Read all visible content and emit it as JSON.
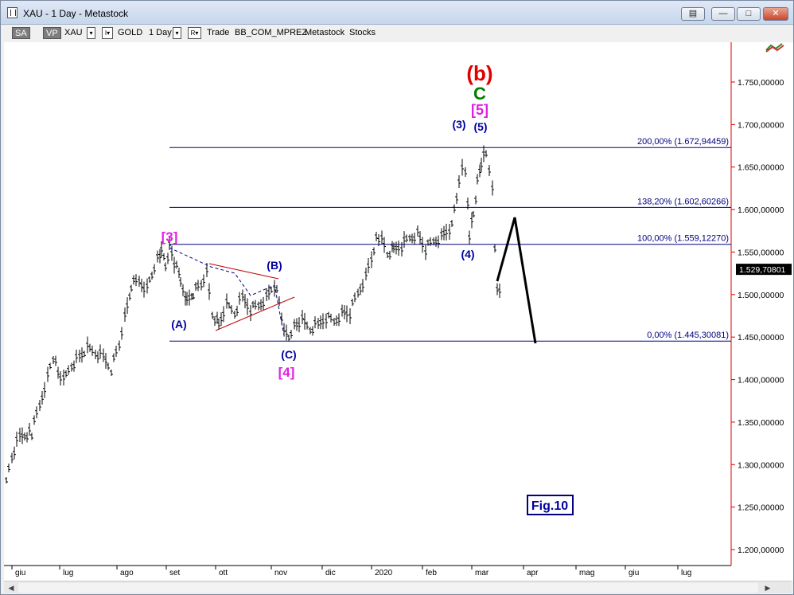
{
  "window": {
    "title": "XAU - 1 Day - Metastock",
    "buttons": {
      "restore_icon": "restore-window-icon",
      "minimize": "—",
      "maximize": "□",
      "close": "✕"
    }
  },
  "toolbar": {
    "sa": "SA",
    "vp": "VP",
    "symbol": "XAU",
    "arrow1": "▾",
    "i_box": "I▾",
    "name": "GOLD",
    "period": "1 Day",
    "arrow2": "▾",
    "r_box": "R▾",
    "trade": "Trade",
    "account": "BB_COM_MPREZ",
    "source": "Metastock",
    "type": "Stocks"
  },
  "chart_data": {
    "type": "candlestick",
    "x_labels": [
      "giu",
      "lug",
      "ago",
      "set",
      "ott",
      "nov",
      "dic",
      "2020",
      "feb",
      "mar",
      "apr",
      "mag",
      "giu",
      "lug"
    ],
    "y_ticks": [
      "1.750,00000",
      "1.700,00000",
      "1.650,00000",
      "1.600,00000",
      "1.550,00000",
      "1.500,00000",
      "1.450,00000",
      "1.400,00000",
      "1.350,00000",
      "1.300,00000",
      "1.250,00000",
      "1.200,00000"
    ],
    "ylim": [
      1175,
      1790
    ],
    "last_price": "1.529,70801",
    "fib_levels": [
      {
        "label": "200,00% (1.672,94459)",
        "value": 1672.94
      },
      {
        "label": "138,20% (1.602,60266)",
        "value": 1602.6
      },
      {
        "label": "100,00% (1.559,12270)",
        "value": 1559.12
      },
      {
        "label": "0,00% (1.445,30081)",
        "value": 1445.3
      }
    ],
    "wave_labels": [
      {
        "text": "(b)",
        "color": "#e00000"
      },
      {
        "text": "C",
        "color": "#008000"
      },
      {
        "text": "[5]",
        "color": "#e020e0"
      },
      {
        "text": "(3)",
        "color": "#0000a0"
      },
      {
        "text": "(5)",
        "color": "#0000a0"
      },
      {
        "text": "(4)",
        "color": "#0000a0"
      },
      {
        "text": "[3]",
        "color": "#e020e0"
      },
      {
        "text": "(B)",
        "color": "#0000a0"
      },
      {
        "text": "(A)",
        "color": "#0000a0"
      },
      {
        "text": "(C)",
        "color": "#0000a0"
      },
      {
        "text": "[4]",
        "color": "#e020e0"
      }
    ],
    "fig_label": "Fig.10",
    "colors": {
      "price_axis": "#e00000",
      "fib_line": "#000080",
      "bars": "#000000",
      "triangle": "#c00000"
    }
  }
}
